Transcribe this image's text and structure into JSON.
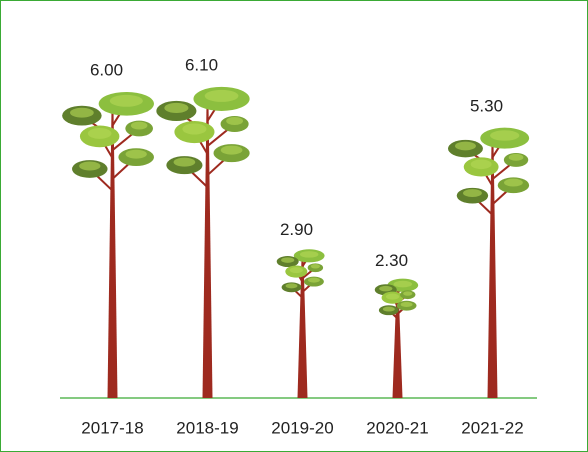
{
  "chart_data": {
    "type": "bar",
    "categories": [
      "2017-18",
      "2018-19",
      "2019-20",
      "2020-21",
      "2021-22"
    ],
    "values": [
      6.0,
      6.1,
      2.9,
      2.3,
      5.3
    ],
    "value_labels": [
      "6.00",
      "6.10",
      "2.90",
      "2.30",
      "5.30"
    ],
    "color": "#9e2a1f"
  }
}
